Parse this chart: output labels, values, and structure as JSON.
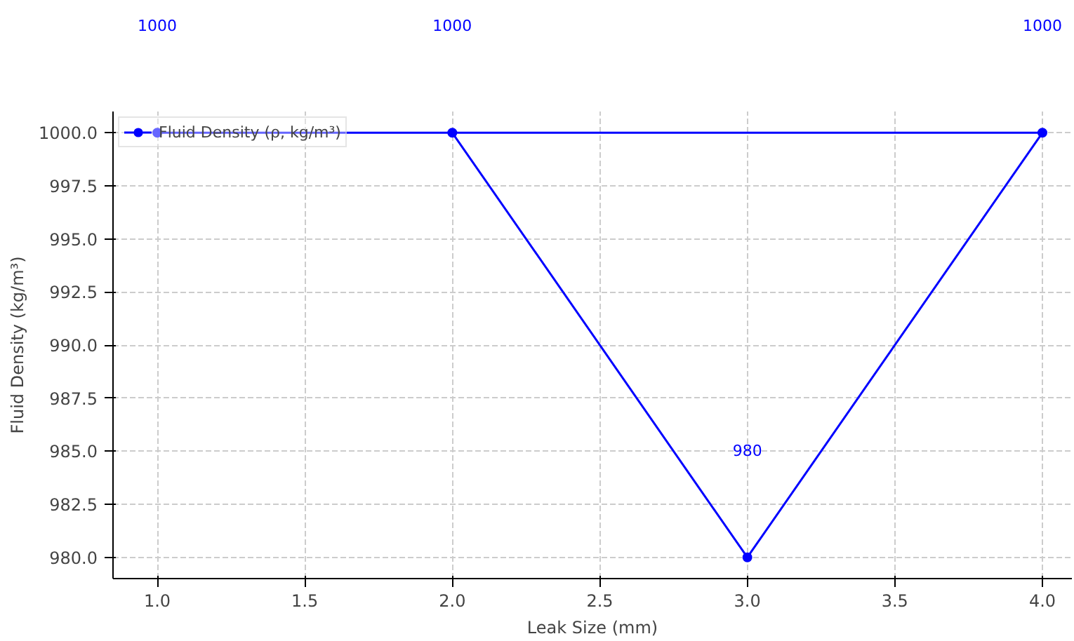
{
  "chart_data": {
    "type": "line",
    "xlabel": "Leak Size (mm)",
    "ylabel": "Fluid Density (kg/m³)",
    "x": [
      1,
      4,
      3,
      2
    ],
    "series": [
      {
        "name": "Fluid Density (ρ, kg/m³)",
        "color": "#0000ff",
        "values": [
          1000,
          1000,
          980,
          1000
        ]
      }
    ],
    "value_labels": [
      "1000",
      "1000",
      "980",
      "1000"
    ],
    "xlim": [
      0.85,
      4.1
    ],
    "ylim": [
      979,
      1001
    ],
    "xticks": [
      {
        "value": 1,
        "label": "1.0"
      },
      {
        "value": 1.5,
        "label": "1.5"
      },
      {
        "value": 2,
        "label": "2.0"
      },
      {
        "value": 2.5,
        "label": "2.5"
      },
      {
        "value": 3,
        "label": "3.0"
      },
      {
        "value": 3.5,
        "label": "3.5"
      },
      {
        "value": 4,
        "label": "4.0"
      }
    ],
    "yticks": [
      {
        "value": 980,
        "label": "980.0"
      },
      {
        "value": 982.5,
        "label": "982.5"
      },
      {
        "value": 985,
        "label": "985.0"
      },
      {
        "value": 987.5,
        "label": "987.5"
      },
      {
        "value": 990,
        "label": "990.0"
      },
      {
        "value": 992.5,
        "label": "992.5"
      },
      {
        "value": 995,
        "label": "995.0"
      },
      {
        "value": 997.5,
        "label": "997.5"
      },
      {
        "value": 1000,
        "label": "1000.0"
      }
    ],
    "grid": true,
    "legend": "top left",
    "marker": "circle",
    "line_style": "solid"
  }
}
